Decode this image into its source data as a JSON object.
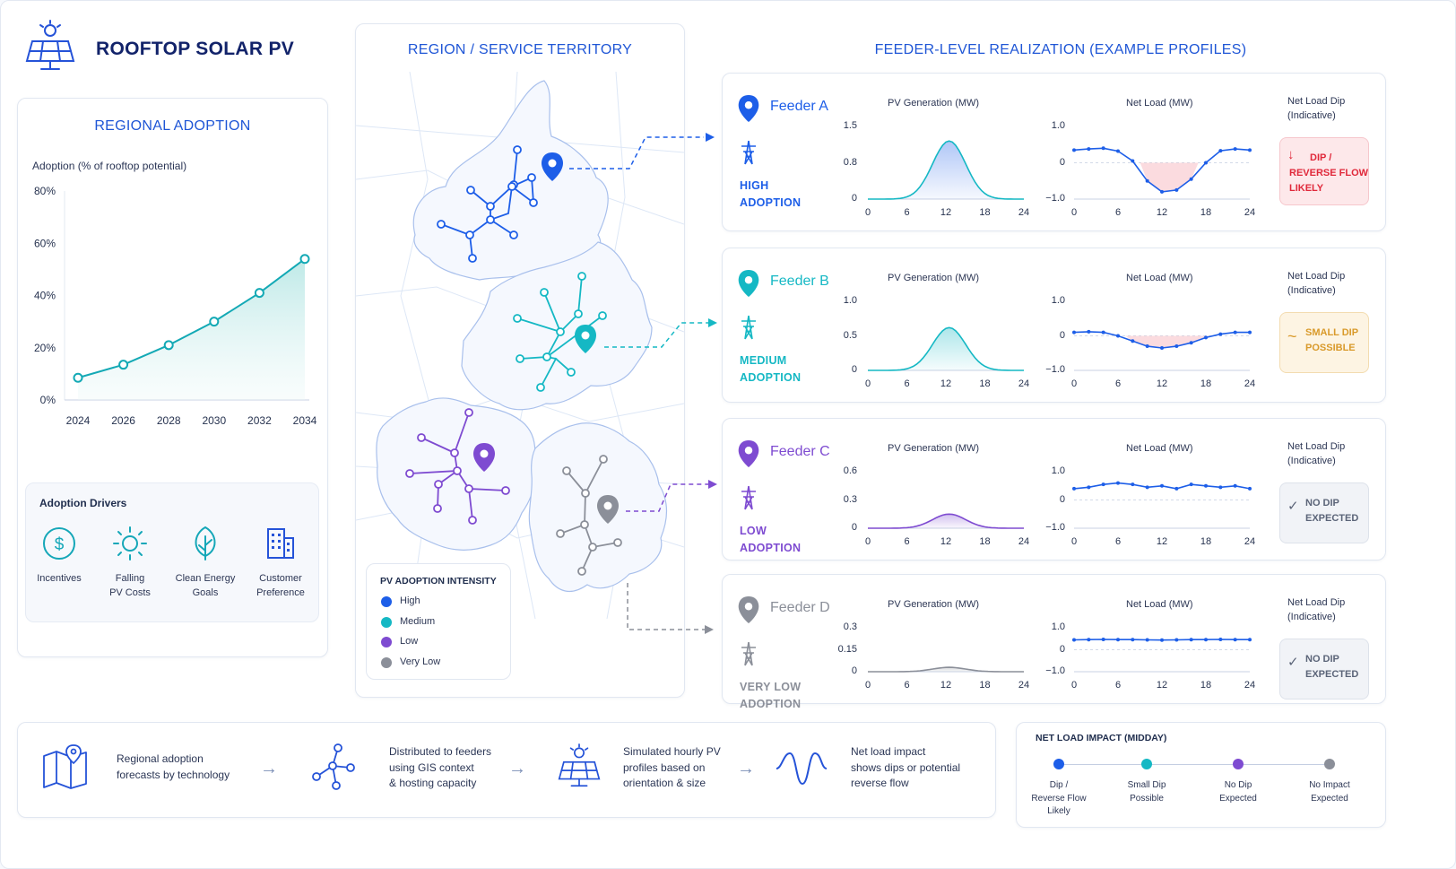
{
  "header": {
    "title": "ROOFTOP SOLAR PV",
    "icon": "solar-panel-icon"
  },
  "regional": {
    "title": "REGIONAL ADOPTION",
    "chart_label": "Adoption (% of rooftop potential)",
    "drivers_title": "Adoption Drivers",
    "drivers": [
      {
        "icon": "dollar-icon",
        "line1": "Incentives",
        "line2": ""
      },
      {
        "icon": "sun-icon",
        "line1": "Falling",
        "line2": "PV Costs"
      },
      {
        "icon": "leaf-icon",
        "line1": "Clean Energy",
        "line2": "Goals"
      },
      {
        "icon": "building-icon",
        "line1": "Customer",
        "line2": "Preference"
      }
    ]
  },
  "region": {
    "title": "REGION / SERVICE TERRITORY",
    "legend_title": "PV ADOPTION INTENSITY",
    "legend": [
      {
        "label": "High",
        "color": "#1d5ee8"
      },
      {
        "label": "Medium",
        "color": "#15b8c4"
      },
      {
        "label": "Low",
        "color": "#7e4bd1"
      },
      {
        "label": "Very Low",
        "color": "#8b8f99"
      }
    ]
  },
  "feeders_title": "FEEDER-LEVEL REALIZATION (EXAMPLE PROFILES)",
  "feeders": [
    {
      "name": "Feeder A",
      "color": "#1d5ee8",
      "adopt1": "HIGH",
      "adopt2": "ADOPTION",
      "pv_title": "PV Generation (MW)",
      "pv_yticks": [
        "1.5",
        "0.8",
        "0"
      ],
      "nl_title": "Net Load (MW)",
      "nl_yticks": [
        "1.0",
        "0",
        "−1.0"
      ],
      "dip_title1": "Net Load Dip",
      "dip_title2": "(Indicative)",
      "status_icon": "down-arrow-icon",
      "status": [
        "DIP /",
        "REVERSE FLOW",
        "LIKELY"
      ]
    },
    {
      "name": "Feeder B",
      "color": "#15b8c4",
      "adopt1": "MEDIUM",
      "adopt2": "ADOPTION",
      "pv_title": "PV Generation (MW)",
      "pv_yticks": [
        "1.0",
        "0.5",
        "0"
      ],
      "nl_title": "Net Load (MW)",
      "nl_yticks": [
        "1.0",
        "0",
        "−1.0"
      ],
      "dip_title1": "Net Load Dip",
      "dip_title2": "(Indicative)",
      "status_icon": "wave-icon",
      "status": [
        "SMALL DIP",
        "POSSIBLE",
        ""
      ]
    },
    {
      "name": "Feeder C",
      "color": "#7e4bd1",
      "adopt1": "LOW",
      "adopt2": "ADOPTION",
      "pv_title": "PV Generation (MW)",
      "pv_yticks": [
        "0.6",
        "0.3",
        "0"
      ],
      "nl_title": "Net Load (MW)",
      "nl_yticks": [
        "1.0",
        "0",
        "−1.0"
      ],
      "dip_title1": "Net Load Dip",
      "dip_title2": "(Indicative)",
      "status_icon": "check-icon",
      "status": [
        "NO DIP",
        "EXPECTED",
        ""
      ]
    },
    {
      "name": "Feeder D",
      "color": "#8b8f99",
      "adopt1": "VERY LOW",
      "adopt2": "ADOPTION",
      "pv_title": "PV Generation (MW)",
      "pv_yticks": [
        "0.3",
        "0.15",
        "0"
      ],
      "nl_title": "Net Load (MW)",
      "nl_yticks": [
        "1.0",
        "0",
        "−1.0"
      ],
      "dip_title1": "Net Load Dip",
      "dip_title2": "(Indicative)",
      "status_icon": "check-icon",
      "status": [
        "NO DIP",
        "EXPECTED",
        ""
      ]
    }
  ],
  "hour_ticks": [
    "0",
    "6",
    "12",
    "18",
    "24"
  ],
  "flow": [
    {
      "icon": "map-pin-icon",
      "text": [
        "Regional adoption",
        "forecasts by technology",
        ""
      ]
    },
    {
      "icon": "network-icon",
      "text": [
        "Distributed to feeders",
        "using GIS context",
        "& hosting capacity"
      ]
    },
    {
      "icon": "solar-panel-icon",
      "text": [
        "Simulated hourly PV",
        "profiles based on",
        "orientation & size"
      ]
    },
    {
      "icon": "sine-wave-icon",
      "text": [
        "Net load impact",
        "shows dips or potential",
        "reverse flow"
      ]
    }
  ],
  "impact": {
    "title": "NET LOAD IMPACT (MIDDAY)",
    "items": [
      {
        "color": "#1d5ee8",
        "lines": [
          "Dip /",
          "Reverse Flow",
          "Likely"
        ]
      },
      {
        "color": "#15b8c4",
        "lines": [
          "Small Dip",
          "Possible",
          ""
        ]
      },
      {
        "color": "#7e4bd1",
        "lines": [
          "No Dip",
          "Expected",
          ""
        ]
      },
      {
        "color": "#8b8f99",
        "lines": [
          "No Impact",
          "Expected",
          ""
        ]
      }
    ]
  },
  "chart_data": [
    {
      "type": "line",
      "title": "",
      "ylabel": "Adoption (% of rooftop potential)",
      "x": [
        "2024",
        "2026",
        "2028",
        "2030",
        "2032",
        "2034"
      ],
      "yticks": [
        "80%",
        "60%",
        "40%",
        "20%",
        "0%"
      ],
      "ylim": [
        0,
        80
      ],
      "series": [
        {
          "values": [
            8.5,
            13.5,
            21,
            30,
            41,
            54
          ]
        }
      ]
    },
    {
      "type": "area",
      "title": "PV Generation (MW)",
      "feeder": "Feeder A",
      "x": [
        0,
        24
      ],
      "peak": 1.2,
      "ylim": [
        0,
        1.5
      ]
    },
    {
      "type": "line",
      "title": "Net Load (MW)",
      "feeder": "Feeder A",
      "x": [
        0,
        2,
        4,
        6,
        8,
        10,
        12,
        14,
        16,
        18,
        20,
        22,
        24
      ],
      "values": [
        0.35,
        0.38,
        0.4,
        0.32,
        0.05,
        -0.5,
        -0.8,
        -0.75,
        -0.45,
        0.0,
        0.33,
        0.38,
        0.35
      ],
      "ylim": [
        -1,
        1
      ]
    },
    {
      "type": "area",
      "title": "PV Generation (MW)",
      "feeder": "Feeder B",
      "x": [
        0,
        24
      ],
      "peak": 0.62,
      "ylim": [
        0,
        1.0
      ]
    },
    {
      "type": "line",
      "title": "Net Load (MW)",
      "feeder": "Feeder B",
      "x": [
        0,
        2,
        4,
        6,
        8,
        10,
        12,
        14,
        16,
        18,
        20,
        22,
        24
      ],
      "values": [
        0.1,
        0.12,
        0.1,
        0.0,
        -0.15,
        -0.3,
        -0.35,
        -0.3,
        -0.2,
        -0.05,
        0.05,
        0.1,
        0.1
      ],
      "ylim": [
        -1,
        1
      ]
    },
    {
      "type": "area",
      "title": "PV Generation (MW)",
      "feeder": "Feeder C",
      "x": [
        0,
        24
      ],
      "peak": 0.15,
      "ylim": [
        0,
        0.6
      ]
    },
    {
      "type": "line",
      "title": "Net Load (MW)",
      "feeder": "Feeder C",
      "x": [
        0,
        2,
        4,
        6,
        8,
        10,
        12,
        14,
        16,
        18,
        20,
        22,
        24
      ],
      "values": [
        0.4,
        0.45,
        0.55,
        0.6,
        0.55,
        0.45,
        0.5,
        0.4,
        0.55,
        0.5,
        0.45,
        0.5,
        0.4
      ],
      "ylim": [
        -1,
        1
      ]
    },
    {
      "type": "area",
      "title": "PV Generation (MW)",
      "feeder": "Feeder D",
      "x": [
        0,
        24
      ],
      "peak": 0.03,
      "ylim": [
        0,
        0.3
      ]
    },
    {
      "type": "line",
      "title": "Net Load (MW)",
      "feeder": "Feeder D",
      "x": [
        0,
        2,
        4,
        6,
        8,
        10,
        12,
        14,
        16,
        18,
        20,
        22,
        24
      ],
      "values": [
        0.45,
        0.46,
        0.47,
        0.46,
        0.46,
        0.45,
        0.44,
        0.45,
        0.46,
        0.46,
        0.47,
        0.46,
        0.46
      ],
      "ylim": [
        -1,
        1
      ]
    }
  ]
}
